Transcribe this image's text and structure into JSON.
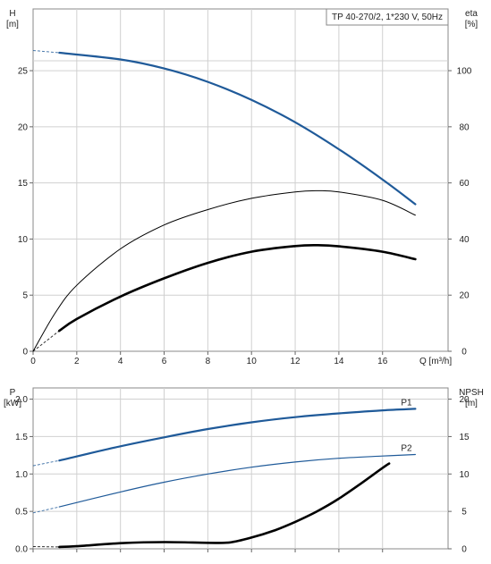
{
  "chart_data": [
    {
      "type": "line",
      "title": "TP 40-270/2, 1*230 V, 50Hz",
      "left_axis": {
        "name": "H",
        "unit": "[m]",
        "lim": [
          0,
          30.5
        ],
        "ticks": [
          0,
          5,
          10,
          15,
          20,
          25
        ]
      },
      "right_axis": {
        "name": "eta",
        "unit": "[%]",
        "lim": [
          0,
          122
        ],
        "ticks": [
          0,
          20,
          40,
          60,
          80,
          100
        ]
      },
      "x_axis": {
        "name": "Q",
        "unit": "[m³/h]",
        "lim": [
          0,
          19
        ],
        "ticks": [
          0,
          2,
          4,
          6,
          8,
          10,
          12,
          14,
          16
        ]
      },
      "grid": true,
      "series": [
        {
          "axis": "left",
          "color": "#1f5a99",
          "width": 2.2,
          "x": [
            1.2,
            4,
            6,
            8,
            10,
            12,
            14,
            16,
            17.5
          ],
          "y": [
            26.6,
            26.0,
            25.2,
            24.0,
            22.4,
            20.4,
            18.0,
            15.3,
            13.1
          ],
          "ext_x": [
            0,
            1.2
          ],
          "ext_y": [
            26.8,
            26.6
          ]
        },
        {
          "axis": "right",
          "color": "#000000",
          "width": 1,
          "x": [
            0,
            1,
            2,
            4,
            6,
            8,
            10,
            12,
            13,
            14,
            16,
            17.5
          ],
          "y": [
            0,
            13.5,
            23.5,
            36.5,
            45.0,
            50.5,
            54.5,
            56.8,
            57.2,
            56.8,
            53.8,
            48.5
          ]
        },
        {
          "axis": "right",
          "color": "#000000",
          "width": 2.6,
          "x": [
            1.2,
            2,
            4,
            6,
            8,
            10,
            12,
            13,
            14,
            16,
            17.5
          ],
          "y": [
            7.3,
            11.5,
            19.5,
            26.0,
            31.5,
            35.5,
            37.5,
            37.8,
            37.4,
            35.5,
            32.8
          ],
          "ext_x": [
            0,
            1.2
          ],
          "ext_y": [
            0,
            7.3
          ]
        }
      ]
    },
    {
      "type": "line",
      "left_axis": {
        "name": "P",
        "unit": "[kW]",
        "lim": [
          0,
          2.15
        ],
        "ticks": [
          "0.0",
          "0.5",
          "1.0",
          "1.5",
          "2.0"
        ]
      },
      "right_axis": {
        "name": "NPSH",
        "unit": "[m]",
        "lim": [
          0,
          21.5
        ],
        "ticks": [
          0,
          5,
          10,
          15,
          20
        ]
      },
      "x_axis": {
        "lim": [
          0,
          19
        ],
        "ticks": [
          0,
          2,
          4,
          6,
          8,
          10,
          12,
          14,
          16
        ]
      },
      "grid": true,
      "series": [
        {
          "name": "P1",
          "axis": "left",
          "color": "#1f5a99",
          "width": 2.2,
          "x": [
            1.2,
            4,
            6,
            8,
            10,
            12,
            14,
            16,
            17.5
          ],
          "y": [
            1.18,
            1.37,
            1.49,
            1.6,
            1.69,
            1.76,
            1.81,
            1.85,
            1.87
          ],
          "ext_x": [
            0,
            1.2
          ],
          "ext_y": [
            1.11,
            1.18
          ]
        },
        {
          "name": "P2",
          "axis": "left",
          "color": "#1f5a99",
          "width": 1.2,
          "x": [
            1.2,
            4,
            6,
            8,
            10,
            12,
            14,
            16,
            17.5
          ],
          "y": [
            0.56,
            0.76,
            0.89,
            1.0,
            1.09,
            1.16,
            1.21,
            1.24,
            1.26
          ],
          "ext_x": [
            0,
            1.2
          ],
          "ext_y": [
            0.48,
            0.56
          ]
        },
        {
          "axis": "right",
          "color": "#000000",
          "width": 2.6,
          "x": [
            1.2,
            2,
            4,
            6,
            8,
            9,
            10,
            11,
            12,
            13,
            14,
            15,
            16,
            16.3
          ],
          "y": [
            0.25,
            0.35,
            0.75,
            0.9,
            0.8,
            0.85,
            1.5,
            2.4,
            3.6,
            5.0,
            6.7,
            8.7,
            10.8,
            11.4
          ],
          "ext_x": [
            0,
            1.2
          ],
          "ext_y": [
            0.3,
            0.25
          ]
        }
      ]
    }
  ]
}
